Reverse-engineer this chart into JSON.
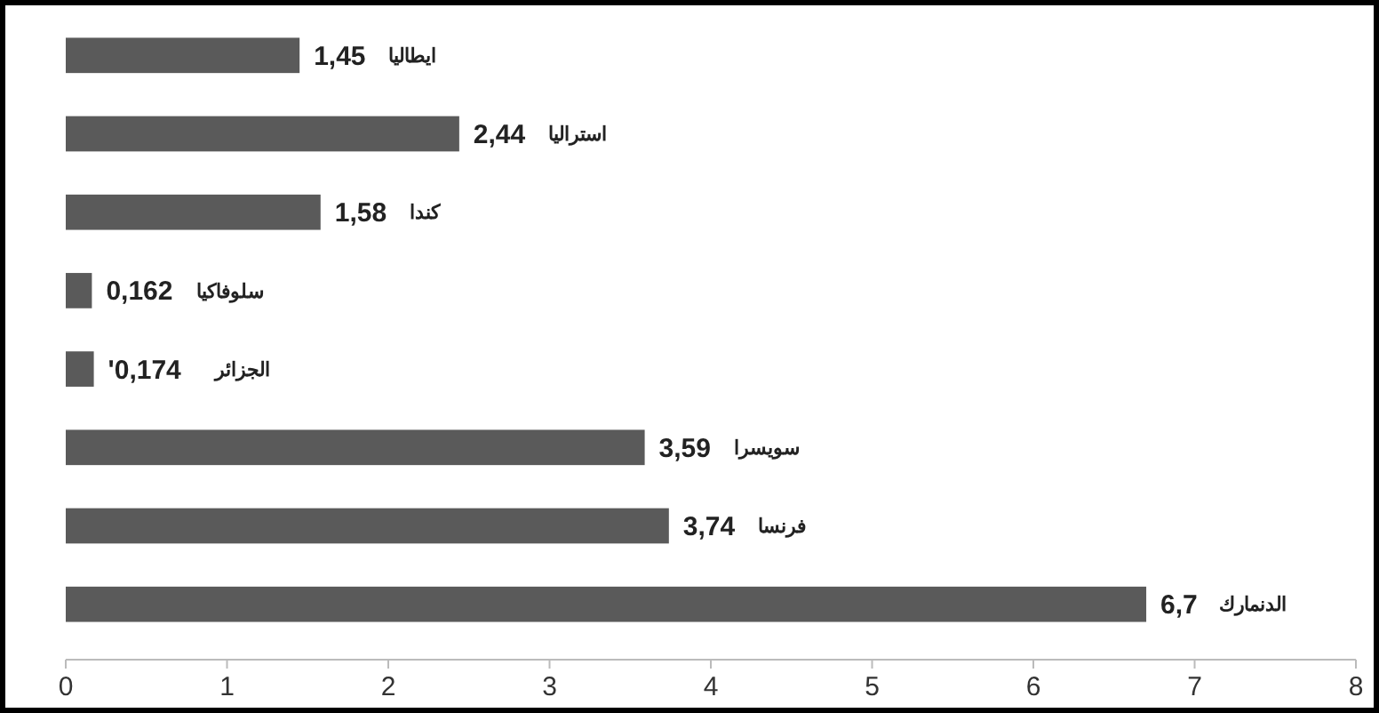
{
  "chart_data": {
    "type": "bar",
    "orientation": "horizontal",
    "categories": [
      "ايطاليا",
      "استراليا",
      "كندا",
      "سلوفاكيا",
      "الجزائر",
      "سويسرا",
      "فرنسا",
      "الدنمارك"
    ],
    "values": [
      1.45,
      2.44,
      1.58,
      0.162,
      0.174,
      3.59,
      3.74,
      6.7
    ],
    "value_labels": [
      "1,45",
      "2,44",
      "1,58",
      "0,162",
      "'0,174",
      "3,59",
      "3,74",
      "6,7"
    ],
    "color": "#5a5a5a",
    "xlim": [
      0,
      8
    ],
    "xticks": [
      0,
      1,
      2,
      3,
      4,
      5,
      6,
      7,
      8
    ],
    "grid": false
  }
}
